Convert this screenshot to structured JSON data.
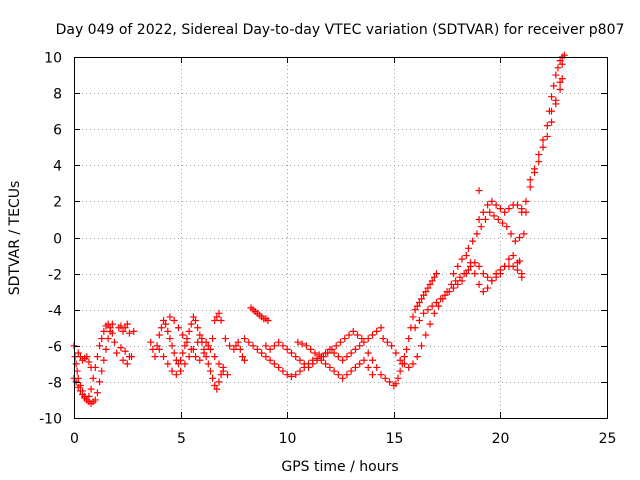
{
  "chart_data": {
    "type": "scatter",
    "title": "Day 049 of 2022, Sidereal Day-to-day VTEC variation (SDTVAR) for receiver p807",
    "xlabel": "GPS time / hours",
    "ylabel": "SDTVAR / TECUs",
    "xlim": [
      0,
      25
    ],
    "ylim": [
      -10,
      10
    ],
    "xticks": [
      0,
      5,
      10,
      15,
      20,
      25
    ],
    "yticks": [
      -10,
      -8,
      -6,
      -4,
      -2,
      0,
      2,
      4,
      6,
      8,
      10
    ],
    "xtick_labels": [
      "0",
      "5",
      "10",
      "15",
      "20",
      "25"
    ],
    "ytick_labels": [
      "-10",
      "-8",
      "-6",
      "-4",
      "-2",
      "0",
      "2",
      "4",
      "6",
      "8",
      "10"
    ],
    "grid": true,
    "marker": "+",
    "marker_color": "#ff0000",
    "series": [
      {
        "name": "SDTVAR",
        "x": [
          0.0,
          0.05,
          0.1,
          0.15,
          0.2,
          0.3,
          0.4,
          0.5,
          0.6,
          0.7,
          0.8,
          0.9,
          1.0,
          1.1,
          1.2,
          1.3,
          1.4,
          1.5,
          1.6,
          1.7,
          1.8,
          1.9,
          2.0,
          0.0,
          0.1,
          0.2,
          0.3,
          0.4,
          0.5,
          0.6,
          0.7,
          0.8,
          0.9,
          1.0,
          1.1,
          1.2,
          1.3,
          1.4,
          1.5,
          1.6,
          1.7,
          1.8,
          0.2,
          0.3,
          0.4,
          0.5,
          0.6,
          0.7,
          0.8,
          2.1,
          2.2,
          2.3,
          2.4,
          2.5,
          2.6,
          2.2,
          2.4,
          2.6,
          2.8,
          2.3,
          2.5,
          2.7,
          3.6,
          3.7,
          3.8,
          3.9,
          4.0,
          4.1,
          4.2,
          4.3,
          4.4,
          4.5,
          4.6,
          4.7,
          4.8,
          4.9,
          5.0,
          5.1,
          5.2,
          5.3,
          5.4,
          5.5,
          5.6,
          5.7,
          5.8,
          5.9,
          6.0,
          6.1,
          6.2,
          6.3,
          6.4,
          6.5,
          6.6,
          6.7,
          6.8,
          6.9,
          7.0,
          4.0,
          4.2,
          4.4,
          4.6,
          4.8,
          5.0,
          5.2,
          5.4,
          5.6,
          5.8,
          6.0,
          6.2,
          6.4,
          6.6,
          6.8,
          7.0,
          7.2,
          4.5,
          4.7,
          4.9,
          5.1,
          5.3,
          5.5,
          5.7,
          5.9,
          6.1,
          6.3,
          6.5,
          6.6,
          6.7,
          6.8,
          6.9,
          7.1,
          7.3,
          7.5,
          7.6,
          7.7,
          7.8,
          7.9,
          8.0,
          8.3,
          8.4,
          8.5,
          8.6,
          8.7,
          8.8,
          8.9,
          9.0,
          9.1,
          8.0,
          8.2,
          8.4,
          8.6,
          8.8,
          9.0,
          9.2,
          9.4,
          9.6,
          9.8,
          10.0,
          10.2,
          10.4,
          10.6,
          10.8,
          11.0,
          11.2,
          11.4,
          11.6,
          11.8,
          12.0,
          12.2,
          12.4,
          12.6,
          12.8,
          13.0,
          13.2,
          13.4,
          13.6,
          13.8,
          14.0,
          9.0,
          9.2,
          9.4,
          9.6,
          9.8,
          10.0,
          10.2,
          10.4,
          10.6,
          10.8,
          11.0,
          11.2,
          11.4,
          11.6,
          11.8,
          12.0,
          12.2,
          12.4,
          12.6,
          12.8,
          13.0,
          13.2,
          13.4,
          13.6,
          13.8,
          14.0,
          14.2,
          14.4,
          10.5,
          10.7,
          10.9,
          11.1,
          11.3,
          11.5,
          11.7,
          11.9,
          12.1,
          12.3,
          12.5,
          12.7,
          12.9,
          13.1,
          13.3,
          13.5,
          13.8,
          14.0,
          14.2,
          14.4,
          14.6,
          14.8,
          15.0,
          15.1,
          15.2,
          15.3,
          15.4,
          15.5,
          15.6,
          15.7,
          15.8,
          15.9,
          16.0,
          16.1,
          16.2,
          16.3,
          16.4,
          16.5,
          16.6,
          16.7,
          16.8,
          16.9,
          17.0,
          14.5,
          14.7,
          14.9,
          15.1,
          15.3,
          15.5,
          15.7,
          15.9,
          16.1,
          16.3,
          16.5,
          16.7,
          16.9,
          17.1,
          17.3,
          17.5,
          17.7,
          17.9,
          18.1,
          18.3,
          18.5,
          16.0,
          16.2,
          16.4,
          16.6,
          16.8,
          17.0,
          17.2,
          17.4,
          17.6,
          17.8,
          18.0,
          18.2,
          18.4,
          18.6,
          18.8,
          19.0,
          19.2,
          19.4,
          19.6,
          19.8,
          20.0,
          20.2,
          20.4,
          20.6,
          20.8,
          21.0,
          17.8,
          18.0,
          18.2,
          18.4,
          18.6,
          18.8,
          19.0,
          19.2,
          19.4,
          19.6,
          19.8,
          20.0,
          20.2,
          20.4,
          20.6,
          20.8,
          21.0,
          18.5,
          18.7,
          18.9,
          19.1,
          19.3,
          19.5,
          19.7,
          19.9,
          20.1,
          20.3,
          20.5,
          20.7,
          20.9,
          21.1,
          19.0,
          19.2,
          19.4,
          19.6,
          19.8,
          20.0,
          20.2,
          20.4,
          20.6,
          20.8,
          21.0,
          21.2,
          21.0,
          21.2,
          21.4,
          21.6,
          21.8,
          22.0,
          22.2,
          22.4,
          22.6,
          22.8,
          22.9,
          21.4,
          21.6,
          21.8,
          22.0,
          22.2,
          22.4,
          22.6,
          22.8,
          22.9,
          22.3,
          22.4,
          22.5,
          22.6,
          22.7,
          22.8,
          22.9,
          23.0,
          19.0,
          20.9
        ],
        "y": [
          -6.0,
          -6.6,
          -7.0,
          -7.4,
          -7.8,
          -8.2,
          -8.5,
          -8.8,
          -9.0,
          -8.8,
          -8.4,
          -7.8,
          -7.2,
          -6.6,
          -6.0,
          -5.6,
          -5.2,
          -4.9,
          -4.8,
          -5.0,
          -5.3,
          -5.8,
          -6.4,
          -7.8,
          -8.0,
          -8.3,
          -8.5,
          -8.7,
          -8.9,
          -9.0,
          -9.1,
          -9.2,
          -9.1,
          -9.0,
          -8.6,
          -8.0,
          -7.4,
          -6.8,
          -6.2,
          -5.6,
          -5.2,
          -4.8,
          -6.4,
          -6.6,
          -6.8,
          -6.7,
          -6.6,
          -6.9,
          -7.2,
          -5.0,
          -4.9,
          -5.2,
          -5.0,
          -4.8,
          -5.3,
          -6.1,
          -6.3,
          -6.6,
          -5.2,
          -6.8,
          -7.0,
          -6.6,
          -5.8,
          -6.2,
          -6.6,
          -6.0,
          -5.4,
          -5.0,
          -4.6,
          -4.8,
          -5.2,
          -5.6,
          -6.0,
          -6.4,
          -6.8,
          -7.0,
          -6.8,
          -6.4,
          -6.0,
          -5.6,
          -5.2,
          -4.8,
          -4.4,
          -4.6,
          -5.0,
          -5.4,
          -5.8,
          -6.2,
          -6.6,
          -7.0,
          -7.4,
          -7.8,
          -8.2,
          -8.4,
          -8.0,
          -7.6,
          -7.2,
          -6.2,
          -6.6,
          -7.0,
          -7.4,
          -7.6,
          -7.4,
          -7.0,
          -6.6,
          -6.2,
          -5.8,
          -5.6,
          -5.8,
          -6.2,
          -6.6,
          -7.0,
          -7.4,
          -7.6,
          -4.4,
          -4.6,
          -5.0,
          -5.4,
          -5.8,
          -6.2,
          -6.6,
          -6.8,
          -6.4,
          -6.0,
          -5.6,
          -4.6,
          -4.4,
          -4.2,
          -4.6,
          -5.6,
          -6.0,
          -6.2,
          -6.0,
          -5.8,
          -6.2,
          -6.6,
          -6.8,
          -3.9,
          -4.0,
          -4.1,
          -4.2,
          -4.3,
          -4.4,
          -4.5,
          -4.5,
          -4.6,
          -5.6,
          -5.8,
          -6.0,
          -6.2,
          -6.4,
          -6.6,
          -6.8,
          -7.0,
          -7.2,
          -7.4,
          -7.6,
          -7.7,
          -7.6,
          -7.4,
          -7.2,
          -7.0,
          -6.8,
          -6.7,
          -6.8,
          -7.0,
          -7.2,
          -7.4,
          -7.6,
          -7.8,
          -7.6,
          -7.4,
          -7.2,
          -7.0,
          -6.8,
          -7.2,
          -7.6,
          -6.0,
          -6.2,
          -6.0,
          -5.8,
          -6.0,
          -6.2,
          -6.4,
          -6.6,
          -6.8,
          -7.0,
          -7.2,
          -7.0,
          -6.8,
          -6.6,
          -6.4,
          -6.2,
          -6.4,
          -6.6,
          -6.8,
          -6.6,
          -6.4,
          -6.2,
          -6.0,
          -5.8,
          -5.6,
          -5.4,
          -5.2,
          -5.0,
          -5.8,
          -5.9,
          -6.0,
          -6.2,
          -6.4,
          -6.5,
          -6.6,
          -6.4,
          -6.2,
          -6.0,
          -5.8,
          -5.6,
          -5.4,
          -5.2,
          -5.4,
          -5.6,
          -6.4,
          -6.8,
          -7.2,
          -7.6,
          -7.8,
          -8.0,
          -8.2,
          -8.1,
          -7.8,
          -7.4,
          -7.0,
          -6.6,
          -6.2,
          -5.6,
          -5.0,
          -4.4,
          -4.0,
          -3.8,
          -3.6,
          -3.4,
          -3.2,
          -3.0,
          -2.8,
          -2.6,
          -2.4,
          -2.2,
          -2.0,
          -5.6,
          -5.8,
          -6.0,
          -6.4,
          -6.8,
          -7.0,
          -7.2,
          -7.0,
          -6.6,
          -6.0,
          -5.4,
          -4.8,
          -4.2,
          -3.8,
          -3.4,
          -3.0,
          -2.6,
          -2.4,
          -2.2,
          -2.0,
          -1.8,
          -5.0,
          -4.6,
          -4.2,
          -4.0,
          -3.8,
          -3.6,
          -3.4,
          -3.2,
          -3.0,
          -2.8,
          -2.6,
          -2.4,
          -2.0,
          -1.6,
          -1.4,
          -1.6,
          -2.0,
          -2.2,
          -2.4,
          -2.2,
          -2.0,
          -1.6,
          -1.2,
          -1.0,
          -1.4,
          -2.0,
          -2.0,
          -1.6,
          -1.2,
          -1.0,
          -1.4,
          -2.0,
          -2.6,
          -3.0,
          -2.8,
          -2.4,
          -2.0,
          -1.8,
          -1.6,
          -1.6,
          -1.6,
          -1.8,
          -2.2,
          -0.6,
          -0.2,
          0.2,
          0.6,
          1.0,
          1.4,
          1.2,
          1.0,
          0.8,
          0.6,
          0.2,
          -0.2,
          0.0,
          0.2,
          1.0,
          1.4,
          1.8,
          2.0,
          1.8,
          1.6,
          1.4,
          1.6,
          1.8,
          1.8,
          1.6,
          1.4,
          1.4,
          2.0,
          2.8,
          3.6,
          4.2,
          5.0,
          5.6,
          6.4,
          7.4,
          8.6,
          9.6,
          3.2,
          3.8,
          4.6,
          5.4,
          6.2,
          7.0,
          7.6,
          8.2,
          8.8,
          7.0,
          7.8,
          8.4,
          9.0,
          9.4,
          9.8,
          10.0,
          10.1,
          2.6,
          -1.3
        ]
      }
    ]
  }
}
